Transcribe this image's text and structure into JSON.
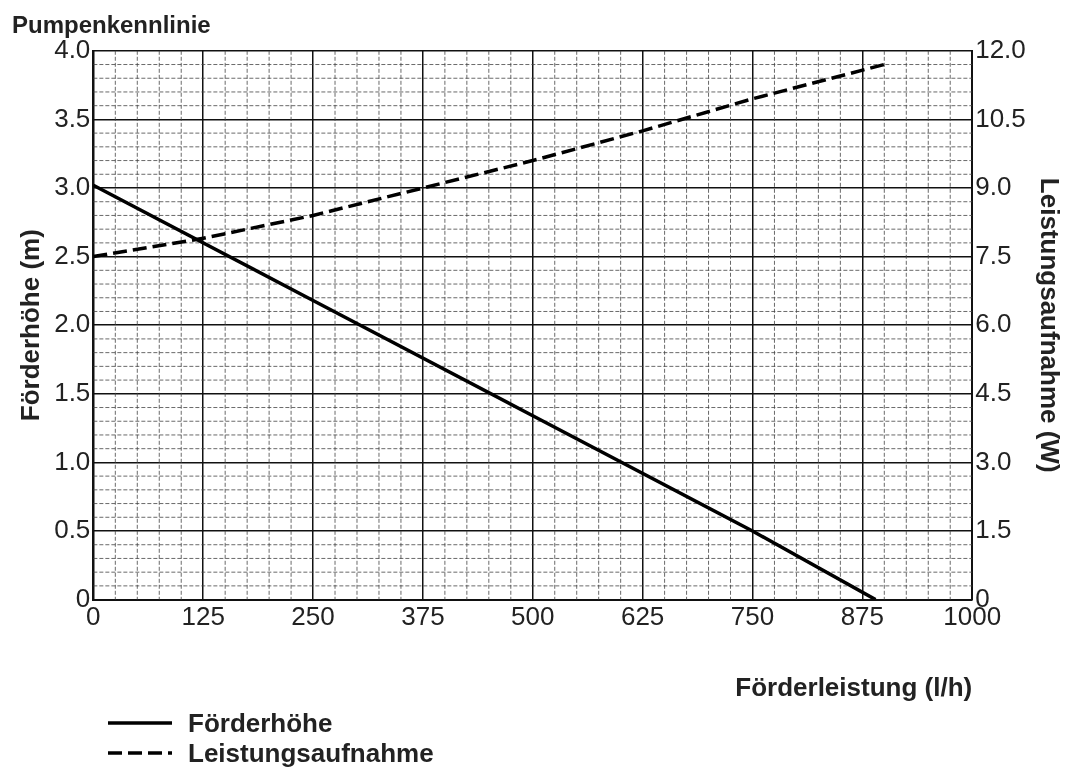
{
  "chart_data": {
    "type": "line",
    "title": "Pumpenkennlinie",
    "xlabel": "Förderleistung (l/h)",
    "ylabel": "Förderhöhe (m)",
    "y2label": "Leistungsaufnahme (W)",
    "series": [
      {
        "name": "Förderhöhe",
        "color": "#000000",
        "line_style": "solid",
        "x": [
          0,
          250,
          500,
          750,
          890
        ],
        "values": [
          3.02,
          2.18,
          1.34,
          0.5,
          0
        ]
      },
      {
        "name": "Leistungsaufnahme",
        "color": "#000000",
        "line_style": "dashed",
        "axis": "y2",
        "x": [
          0,
          125,
          250,
          375,
          500,
          625,
          750,
          900
        ],
        "values": [
          7.5,
          7.9,
          8.4,
          9.0,
          9.6,
          10.25,
          10.95,
          11.7
        ]
      }
    ],
    "xlim": [
      0,
      1000
    ],
    "xticks": [
      0,
      125,
      250,
      375,
      500,
      625,
      750,
      875,
      1000
    ],
    "ylim": [
      0,
      4
    ],
    "yticks": [
      0,
      0.5,
      {
        "value": 1,
        "label": "1.0"
      },
      1.5,
      {
        "value": 2,
        "label": "2.0"
      },
      2.5,
      {
        "value": 3,
        "label": "3.0"
      },
      3.5,
      {
        "value": 4,
        "label": "4.0"
      }
    ],
    "y2lim": [
      0,
      12
    ],
    "y2ticks": [
      0,
      1.5,
      {
        "value": 3,
        "label": "3.0"
      },
      4.5,
      {
        "value": 6,
        "label": "6.0"
      },
      7.5,
      {
        "value": 9,
        "label": "9.0"
      },
      10.5,
      {
        "value": 12,
        "label": "12.0"
      }
    ],
    "grid": true,
    "legend": "bottom left",
    "marker": "none"
  }
}
